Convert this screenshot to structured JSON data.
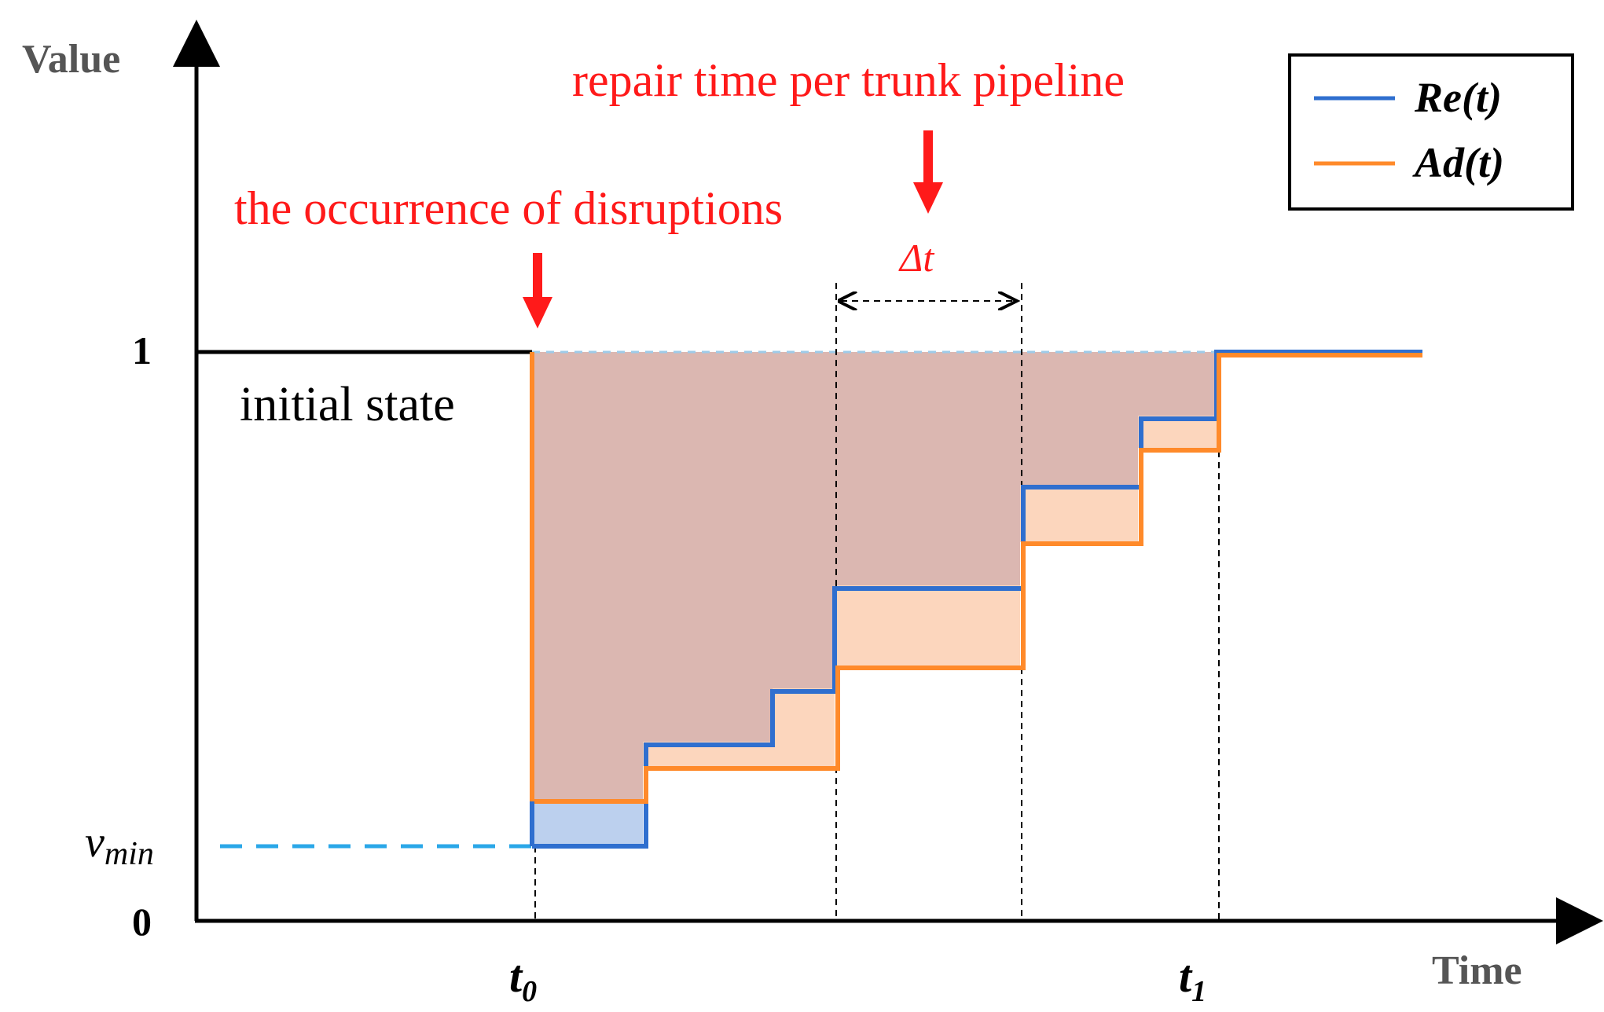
{
  "axes": {
    "y_label": "Value",
    "x_label": "Time",
    "y_tick_one": "1",
    "y_tick_zero": "0",
    "y_tick_vmin_base": "v",
    "y_tick_vmin_sub": "min",
    "x_tick_t0_base": "t",
    "x_tick_t0_sub": "0",
    "x_tick_t1_base": "t",
    "x_tick_t1_sub": "1"
  },
  "annotations": {
    "initial_state": "initial state",
    "disruption": "the occurrence of disruptions",
    "repair_time": "repair time per trunk pipeline",
    "delta_t": "Δt"
  },
  "legend": {
    "re": "Re(t)",
    "ad": "Ad(t)"
  },
  "colors": {
    "re_line": "#2f6fcf",
    "ad_line": "#ff8a2a",
    "overlap_fill": "#dbb7b1",
    "ad_fill": "#fcd6bd",
    "re_fill": "#bcd0ee",
    "vmin_dash": "#2aa7e8",
    "annotation": "#ff1a1a",
    "axis": "#000000"
  },
  "series": {
    "re_steps": [
      {
        "t": "t0",
        "value": "v_min"
      },
      {
        "t": "t0",
        "value": 1
      }
    ],
    "ad_steps": [
      {
        "t": "t0",
        "value": 1
      }
    ]
  }
}
